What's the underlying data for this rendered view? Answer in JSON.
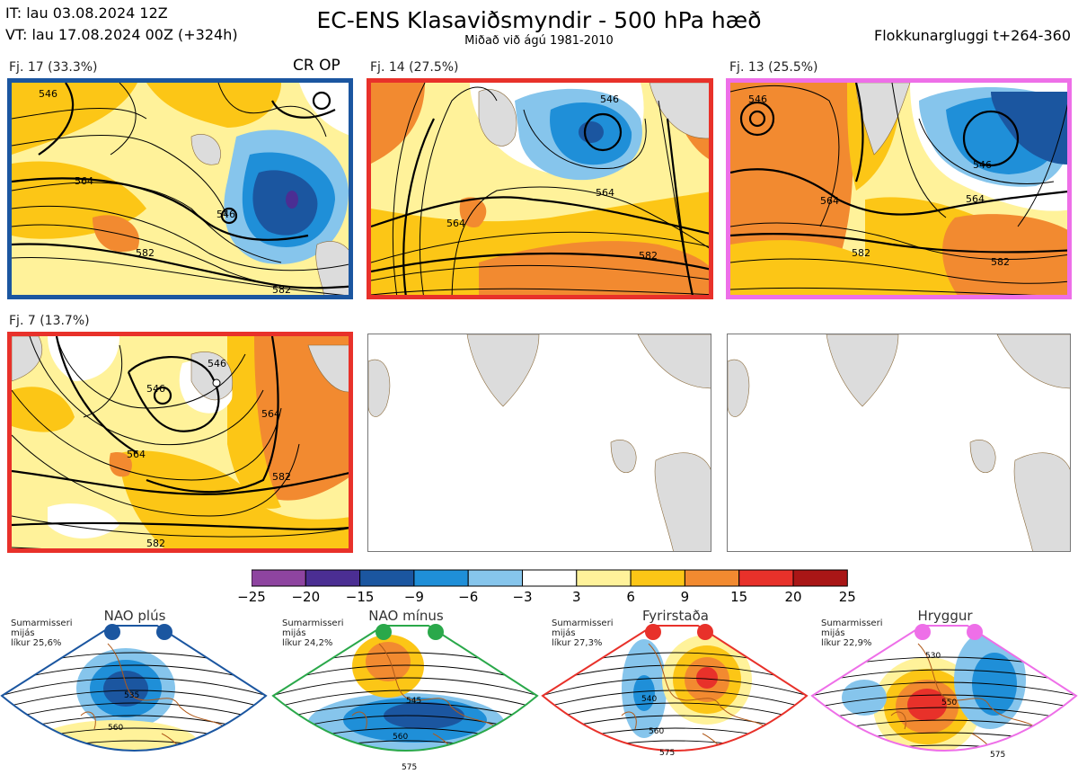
{
  "header": {
    "issue_time": "IT: lau 03.08.2024 12Z",
    "valid_time": "VT: lau 17.08.2024 00Z  (+324h)",
    "title": "EC-ENS Klasaviðsmyndir - 500 hPa hæð",
    "subtitle": "Miðað við ágú 1981-2010",
    "window": "Flokkunargluggi t+264-360"
  },
  "panels": [
    {
      "label": "Fj. 17 (33.3%)",
      "tag": "CR OP",
      "border": "#1b56a0",
      "contours": [
        "546",
        "564",
        "582",
        "582",
        "546"
      ]
    },
    {
      "label": "Fj. 14 (27.5%)",
      "tag": "",
      "border": "#e8312a",
      "contours": [
        "546",
        "564",
        "564",
        "582"
      ]
    },
    {
      "label": "Fj. 13 (25.5%)",
      "tag": "",
      "border": "#ee6fe8",
      "contours": [
        "546",
        "546",
        "564",
        "564",
        "582",
        "582"
      ]
    },
    {
      "label": "Fj. 7 (13.7%)",
      "tag": "",
      "border": "#e8312a",
      "contours": [
        "546",
        "546",
        "564",
        "564",
        "582",
        "582"
      ]
    }
  ],
  "chart_data": {
    "type": "heatmap",
    "title": "EC-ENS Klasaviðsmyndir - 500 hPa hæð",
    "colorbar": {
      "ticks": [
        -25,
        -20,
        -15,
        -9,
        -6,
        -3,
        3,
        6,
        9,
        15,
        20,
        25
      ],
      "colors": [
        "#8e44a0",
        "#4b2e93",
        "#1b56a0",
        "#1f8fd8",
        "#86c5ec",
        "#ffffff",
        "#fff29a",
        "#fcc616",
        "#f28a30",
        "#e8312a",
        "#a91616"
      ]
    },
    "clusters": [
      {
        "name": "Fj. 17",
        "share_pct": 33.3
      },
      {
        "name": "Fj. 14",
        "share_pct": 27.5
      },
      {
        "name": "Fj. 13",
        "share_pct": 25.5
      },
      {
        "name": "Fj. 7",
        "share_pct": 13.7
      }
    ]
  },
  "regimes": [
    {
      "title": "NAO plús",
      "note": [
        "Sumarmisseri",
        "mijás",
        "líkur 25,6%"
      ],
      "color": "#1b56a0",
      "contours": [
        "535",
        "560"
      ]
    },
    {
      "title": "NAO mínus",
      "note": [
        "Sumarmisseri",
        "mijás",
        "líkur 24,2%"
      ],
      "color": "#2aa84a",
      "contours": [
        "545",
        "560",
        "575"
      ]
    },
    {
      "title": "Fyrirstaða",
      "note": [
        "Sumarmisseri",
        "mijás",
        "líkur 27,3%"
      ],
      "color": "#e8312a",
      "contours": [
        "540",
        "560",
        "575"
      ]
    },
    {
      "title": "Hryggur",
      "note": [
        "Sumarmisseri",
        "mijás",
        "líkur 22,9%"
      ],
      "color": "#ee6fe8",
      "contours": [
        "530",
        "550",
        "575"
      ]
    }
  ]
}
